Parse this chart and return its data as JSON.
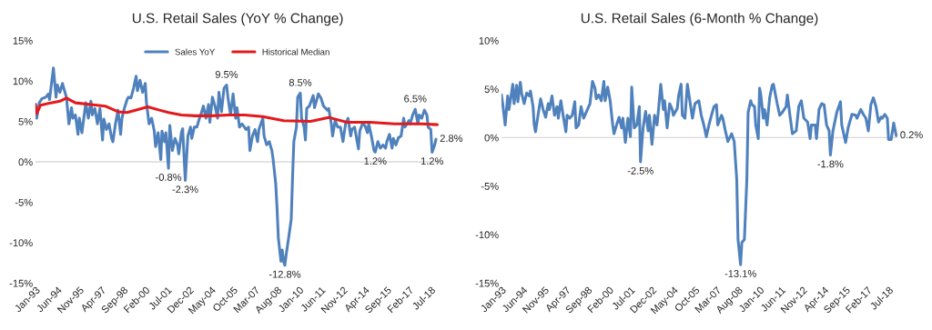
{
  "chart_data": [
    {
      "type": "line",
      "title": "U.S. Retail Sales (YoY % Change)",
      "legend": "top",
      "xlim": [
        "1993-01",
        "2019-02"
      ],
      "ylim": [
        -15,
        15
      ],
      "yticks": [
        {
          "value": -15,
          "label": "-15%"
        },
        {
          "value": -10,
          "label": "-10%"
        },
        {
          "value": -5,
          "label": "-5%"
        },
        {
          "value": 0,
          "label": "0%"
        },
        {
          "value": 5,
          "label": "5%"
        },
        {
          "value": 10,
          "label": "10%"
        },
        {
          "value": 15,
          "label": "15%"
        }
      ],
      "xticks": [
        {
          "value": "1993-01",
          "label": "Jan-93"
        },
        {
          "value": "1994-06",
          "label": "Jun-94"
        },
        {
          "value": "1995-11",
          "label": "Nov-95"
        },
        {
          "value": "1997-04",
          "label": "Apr-97"
        },
        {
          "value": "1998-09",
          "label": "Sep-98"
        },
        {
          "value": "2000-02",
          "label": "Feb-00"
        },
        {
          "value": "2001-07",
          "label": "Jul-01"
        },
        {
          "value": "2002-12",
          "label": "Dec-02"
        },
        {
          "value": "2004-05",
          "label": "May-04"
        },
        {
          "value": "2005-10",
          "label": "Oct-05"
        },
        {
          "value": "2007-03",
          "label": "Mar-07"
        },
        {
          "value": "2008-08",
          "label": "Aug-08"
        },
        {
          "value": "2010-01",
          "label": "Jan-10"
        },
        {
          "value": "2011-06",
          "label": "Jun-11"
        },
        {
          "value": "2012-11",
          "label": "Nov-12"
        },
        {
          "value": "2014-04",
          "label": "Apr-14"
        },
        {
          "value": "2015-09",
          "label": "Sep-15"
        },
        {
          "value": "2017-02",
          "label": "Feb-17"
        },
        {
          "value": "2018-07",
          "label": "Jul-18"
        }
      ],
      "ref_lines": [
        {
          "axis": "y",
          "value": 0,
          "color": "#d9d9d9"
        }
      ],
      "series": [
        {
          "name": "Sales YoY",
          "color": "#4f81bd",
          "x": [
            "1993-01",
            "1993-02",
            "1993-04",
            "1993-06",
            "1993-09",
            "1993-11",
            "1993-12",
            "1994-01",
            "1994-03",
            "1994-05",
            "1994-06",
            "1994-08",
            "1994-10",
            "1994-11",
            "1995-01",
            "1995-03",
            "1995-05",
            "1995-06",
            "1995-08",
            "1995-10",
            "1995-11",
            "1996-01",
            "1996-03",
            "1996-04",
            "1996-06",
            "1996-08",
            "1996-09",
            "1996-11",
            "1997-01",
            "1997-03",
            "1997-05",
            "1997-06",
            "1997-08",
            "1997-10",
            "1997-12",
            "1998-01",
            "1998-03",
            "1998-05",
            "1998-07",
            "1998-08",
            "1998-10",
            "1998-12",
            "1999-01",
            "1999-03",
            "1999-05",
            "1999-07",
            "1999-08",
            "1999-10",
            "1999-12",
            "2000-02",
            "2000-03",
            "2000-05",
            "2000-07",
            "2000-09",
            "2000-10",
            "2000-12",
            "2001-02",
            "2001-03",
            "2001-05",
            "2001-06",
            "2001-08",
            "2001-09",
            "2001-11",
            "2002-01",
            "2002-03",
            "2002-04",
            "2002-06",
            "2002-07",
            "2002-09",
            "2002-11",
            "2003-01",
            "2003-02",
            "2003-04",
            "2003-06",
            "2003-08",
            "2003-09",
            "2003-11",
            "2004-01",
            "2004-03",
            "2004-04",
            "2004-06",
            "2004-08",
            "2004-10",
            "2004-11",
            "2005-01",
            "2005-03",
            "2005-05",
            "2005-06",
            "2005-08",
            "2005-10",
            "2005-12",
            "2006-01",
            "2006-03",
            "2006-05",
            "2006-08",
            "2006-10",
            "2006-11",
            "2007-01",
            "2007-03",
            "2007-05",
            "2007-06",
            "2007-09",
            "2007-10",
            "2007-12",
            "2008-02",
            "2008-04",
            "2008-05",
            "2008-07",
            "2008-08",
            "2008-09",
            "2008-11",
            "2008-12",
            "2009-01",
            "2009-02",
            "2009-03",
            "2009-05",
            "2009-07",
            "2009-08",
            "2009-09",
            "2009-11",
            "2009-12",
            "2010-02",
            "2010-03",
            "2010-05",
            "2010-06",
            "2010-07",
            "2010-09",
            "2010-12",
            "2011-01",
            "2011-04",
            "2011-06",
            "2011-08",
            "2011-11",
            "2011-12",
            "2012-02",
            "2012-03",
            "2012-05",
            "2012-07",
            "2012-09",
            "2012-11",
            "2013-01",
            "2013-03",
            "2013-05",
            "2013-06",
            "2013-08",
            "2013-11",
            "2013-12",
            "2014-02",
            "2014-04",
            "2014-06",
            "2014-07",
            "2014-09",
            "2014-11",
            "2014-12",
            "2015-02",
            "2015-04",
            "2015-06",
            "2015-08",
            "2015-09",
            "2015-11",
            "2016-01",
            "2016-02",
            "2016-04",
            "2016-06",
            "2016-08",
            "2016-10",
            "2016-11",
            "2017-02",
            "2017-03",
            "2017-05",
            "2017-07",
            "2017-09",
            "2017-10",
            "2017-12",
            "2018-02",
            "2018-04",
            "2018-05",
            "2018-07",
            "2018-08",
            "2018-10",
            "2018-11"
          ],
          "values": [
            7.1,
            5.4,
            7.3,
            7.8,
            8.0,
            8.4,
            7.7,
            9.1,
            11.6,
            8.0,
            9.5,
            8.6,
            9.7,
            9.1,
            8.0,
            4.7,
            6.7,
            5.4,
            5.8,
            3.4,
            5.4,
            3.6,
            6.0,
            7.3,
            5.4,
            7.5,
            5.8,
            6.6,
            4.7,
            6.6,
            2.7,
            5.3,
            4.0,
            4.7,
            2.9,
            2.5,
            4.7,
            6.4,
            3.4,
            5.4,
            6.7,
            7.7,
            8.0,
            7.9,
            9.1,
            10.6,
            8.8,
            10.1,
            8.6,
            9.7,
            7.3,
            4.7,
            5.4,
            3.8,
            1.9,
            3.6,
            0.3,
            3.8,
            2.5,
            3.6,
            -0.8,
            4.5,
            1.4,
            2.9,
            2.1,
            1.0,
            3.6,
            4.1,
            -2.3,
            3.2,
            4.3,
            2.9,
            4.3,
            4.3,
            5.4,
            5.8,
            6.9,
            5.4,
            7.1,
            4.9,
            8.0,
            6.9,
            5.4,
            8.6,
            6.2,
            9.1,
            9.5,
            8.0,
            5.8,
            8.4,
            5.4,
            6.7,
            4.3,
            4.7,
            4.0,
            4.3,
            1.4,
            3.2,
            4.0,
            2.5,
            4.0,
            5.4,
            3.2,
            2.1,
            2.5,
            1.4,
            0.3,
            -2.7,
            -5.7,
            -9.4,
            -12.3,
            -10.9,
            -12.3,
            -12.8,
            -11.6,
            -9.4,
            -7.1,
            -2.0,
            2.5,
            4.3,
            8.0,
            8.5,
            5.4,
            4.3,
            2.7,
            6.6,
            6.9,
            8.2,
            6.7,
            8.4,
            7.9,
            6.9,
            6.4,
            6.6,
            4.7,
            3.2,
            5.1,
            4.3,
            4.3,
            2.5,
            4.7,
            5.4,
            3.2,
            4.0,
            4.3,
            1.6,
            3.8,
            4.7,
            4.5,
            3.6,
            4.7,
            3.2,
            1.4,
            1.2,
            2.5,
            1.7,
            2.1,
            1.7,
            2.5,
            3.4,
            1.7,
            2.9,
            2.1,
            3.0,
            3.2,
            5.4,
            4.3,
            5.1,
            4.7,
            5.8,
            6.5,
            4.7,
            5.8,
            5.4,
            6.4,
            5.8,
            4.3,
            4.0,
            1.2,
            2.1,
            2.8
          ]
        },
        {
          "name": "Historical Median",
          "color": "#e31a1c",
          "x": [
            "1993-01",
            "1993-02",
            "1993-05",
            "1994-01",
            "1994-08",
            "1995-01",
            "1995-08",
            "1996-08",
            "1997-07",
            "1998-05",
            "1998-12",
            "1999-09",
            "2000-04",
            "2001-01",
            "2001-08",
            "2002-06",
            "2003-05",
            "2004-05",
            "2005-07",
            "2006-07",
            "2007-09",
            "2009-01",
            "2010-10",
            "2011-12",
            "2013-02",
            "2014-08",
            "2016-03",
            "2017-12",
            "2018-12"
          ],
          "values": [
            7.1,
            6.0,
            7.0,
            7.3,
            7.5,
            7.9,
            7.3,
            7.1,
            6.9,
            6.2,
            6.1,
            6.5,
            6.8,
            6.4,
            6.1,
            5.8,
            5.7,
            5.7,
            5.8,
            5.8,
            5.6,
            5.1,
            5.0,
            5.5,
            4.9,
            4.9,
            4.7,
            4.7,
            4.6
          ]
        }
      ],
      "annotations": [
        {
          "text": "9.5%",
          "x": "2005-05",
          "y": 9.5
        },
        {
          "text": "-0.8%",
          "x": "2001-08",
          "y": -0.8
        },
        {
          "text": "-2.3%",
          "x": "2002-09",
          "y": -2.3
        },
        {
          "text": "-12.8%",
          "x": "2009-02",
          "y": -12.8
        },
        {
          "text": "8.5%",
          "x": "2010-02",
          "y": 8.5
        },
        {
          "text": "6.5%",
          "x": "2017-07",
          "y": 6.5
        },
        {
          "text": "1.2%",
          "x": "2014-12",
          "y": 1.2
        },
        {
          "text": "1.2%",
          "x": "2018-08",
          "y": 1.2
        },
        {
          "text": "2.8%",
          "x": "2018-11",
          "y": 2.8
        }
      ]
    },
    {
      "type": "line",
      "title": "U.S. Retail Sales (6-Month % Change)",
      "xlim": [
        "1993-01",
        "2019-02"
      ],
      "ylim": [
        -15,
        10
      ],
      "yticks": [
        {
          "value": -15,
          "label": "-15%"
        },
        {
          "value": -10,
          "label": "-10%"
        },
        {
          "value": -5,
          "label": "-5%"
        },
        {
          "value": 0,
          "label": "0%"
        },
        {
          "value": 5,
          "label": "5%"
        },
        {
          "value": 10,
          "label": "10%"
        }
      ],
      "xticks": [
        {
          "value": "1993-01",
          "label": "Jan-93"
        },
        {
          "value": "1994-06",
          "label": "Jun-94"
        },
        {
          "value": "1995-11",
          "label": "Nov-95"
        },
        {
          "value": "1997-04",
          "label": "Apr-97"
        },
        {
          "value": "1998-09",
          "label": "Sep-98"
        },
        {
          "value": "2000-02",
          "label": "Feb-00"
        },
        {
          "value": "2001-07",
          "label": "Jul-01"
        },
        {
          "value": "2002-12",
          "label": "Dec-02"
        },
        {
          "value": "2004-05",
          "label": "May-04"
        },
        {
          "value": "2005-10",
          "label": "Oct-05"
        },
        {
          "value": "2007-03",
          "label": "Mar-07"
        },
        {
          "value": "2008-08",
          "label": "Aug-08"
        },
        {
          "value": "2010-01",
          "label": "Jan-10"
        },
        {
          "value": "2011-06",
          "label": "Jun-11"
        },
        {
          "value": "2012-11",
          "label": "Nov-12"
        },
        {
          "value": "2014-04",
          "label": "Apr-14"
        },
        {
          "value": "2015-09",
          "label": "Sep-15"
        },
        {
          "value": "2017-02",
          "label": "Feb-17"
        },
        {
          "value": "2018-07",
          "label": "Jul-18"
        }
      ],
      "ref_lines": [
        {
          "axis": "y",
          "value": 0,
          "color": "#d9d9d9"
        }
      ],
      "series": [
        {
          "color": "#4f81bd",
          "x": [
            "1993-01",
            "1993-02",
            "1993-04",
            "1993-06",
            "1993-07",
            "1993-09",
            "1993-10",
            "1993-11",
            "1994-01",
            "1994-02",
            "1994-04",
            "1994-05",
            "1994-07",
            "1994-09",
            "1994-11",
            "1994-12",
            "1995-02",
            "1995-03",
            "1995-04",
            "1995-06",
            "1995-08",
            "1995-10",
            "1995-12",
            "1996-02",
            "1996-03",
            "1996-05",
            "1996-07",
            "1996-09",
            "1996-10",
            "1996-12",
            "1997-02",
            "1997-04",
            "1997-05",
            "1997-07",
            "1997-09",
            "1997-11",
            "1997-12",
            "1998-02",
            "1998-04",
            "1998-06",
            "1998-09",
            "1998-11",
            "1999-01",
            "1999-03",
            "1999-04",
            "1999-06",
            "1999-08",
            "1999-10",
            "1999-11",
            "2000-01",
            "2000-03",
            "2000-05",
            "2000-06",
            "2000-08",
            "2000-10",
            "2000-12",
            "2001-01",
            "2001-03",
            "2001-05",
            "2001-07",
            "2001-08",
            "2001-10",
            "2001-12",
            "2002-02",
            "2002-03",
            "2002-05",
            "2002-07",
            "2002-09",
            "2002-10",
            "2002-12",
            "2003-02",
            "2003-04",
            "2003-05",
            "2003-07",
            "2003-09",
            "2003-10",
            "2003-12",
            "2004-02",
            "2004-04",
            "2004-05",
            "2004-08",
            "2004-09",
            "2004-11",
            "2004-12",
            "2005-02",
            "2005-04",
            "2005-08",
            "2005-10",
            "2006-01",
            "2006-03",
            "2006-05",
            "2006-07",
            "2006-09",
            "2006-11",
            "2007-01",
            "2007-03",
            "2007-04",
            "2007-07",
            "2007-08",
            "2007-10",
            "2007-12",
            "2008-03",
            "2008-05",
            "2008-07",
            "2008-08",
            "2008-10",
            "2008-11",
            "2009-01",
            "2009-03",
            "2009-04",
            "2009-06",
            "2009-07",
            "2009-09",
            "2009-10",
            "2009-12",
            "2010-01",
            "2010-02",
            "2010-04",
            "2010-05",
            "2010-07",
            "2010-09",
            "2010-11",
            "2010-12",
            "2011-03",
            "2011-05",
            "2011-07",
            "2011-10",
            "2011-11",
            "2012-01",
            "2012-03",
            "2012-06",
            "2012-08",
            "2012-10",
            "2012-12",
            "2013-03",
            "2013-05",
            "2013-06",
            "2013-09",
            "2013-10",
            "2013-12",
            "2014-02",
            "2014-04",
            "2014-06",
            "2014-08",
            "2014-09",
            "2014-11",
            "2015-02",
            "2015-05",
            "2015-06",
            "2015-09",
            "2015-11",
            "2016-02",
            "2016-05",
            "2016-06",
            "2016-09",
            "2016-11",
            "2017-01",
            "2017-03",
            "2017-05",
            "2017-07",
            "2017-09",
            "2017-11",
            "2018-01",
            "2018-02",
            "2018-04",
            "2018-06",
            "2018-07",
            "2018-09",
            "2018-11",
            "2019-01"
          ],
          "values": [
            4.4,
            3.5,
            1.3,
            4.3,
            2.9,
            4.6,
            5.5,
            3.5,
            5.4,
            3.7,
            5.7,
            4.6,
            3.5,
            4.6,
            4.3,
            4.8,
            3.2,
            1.3,
            0.6,
            2.3,
            4.0,
            2.9,
            2.1,
            3.5,
            2.9,
            4.3,
            2.3,
            3.2,
            2.0,
            3.8,
            2.1,
            0.6,
            2.3,
            2.0,
            2.3,
            3.7,
            1.0,
            1.3,
            3.2,
            2.0,
            2.9,
            3.5,
            5.8,
            5.1,
            4.0,
            4.4,
            3.8,
            5.8,
            3.8,
            5.2,
            3.8,
            1.3,
            0.4,
            1.3,
            2.1,
            1.0,
            2.0,
            -0.5,
            2.0,
            0.1,
            5.2,
            1.0,
            1.3,
            3.2,
            -2.5,
            1.0,
            2.7,
            0.7,
            2.3,
            -0.7,
            2.3,
            1.3,
            2.6,
            5.5,
            2.9,
            3.8,
            1.0,
            3.5,
            2.9,
            2.3,
            3.0,
            4.3,
            5.5,
            2.3,
            2.0,
            5.5,
            2.0,
            3.5,
            3.8,
            2.3,
            1.3,
            0.1,
            1.3,
            2.3,
            3.2,
            3.4,
            1.3,
            2.3,
            2.0,
            0.7,
            -0.4,
            0.4,
            -0.4,
            -4.3,
            -10.5,
            -13.1,
            -10.8,
            -10.5,
            -4.3,
            2.6,
            3.8,
            3.4,
            3.2,
            1.3,
            -0.1,
            5.1,
            4.4,
            2.0,
            2.9,
            1.3,
            4.1,
            5.4,
            5.5,
            3.5,
            2.3,
            2.6,
            3.2,
            4.4,
            2.3,
            0.4,
            0.7,
            3.2,
            3.8,
            2.0,
            1.6,
            -0.1,
            1.3,
            1.3,
            -0.1,
            2.9,
            3.5,
            3.4,
            1.3,
            0.7,
            -1.8,
            0.7,
            2.6,
            3.7,
            1.3,
            -0.5,
            1.0,
            2.4,
            2.3,
            2.0,
            2.9,
            2.4,
            2.0,
            0.7,
            3.4,
            4.1,
            3.2,
            1.6,
            2.1,
            2.0,
            2.4,
            2.0,
            -0.2,
            -0.2,
            1.5,
            0.2
          ]
        }
      ],
      "annotations": [
        {
          "text": "-2.5%",
          "x": "2002-03",
          "y": -2.5
        },
        {
          "text": "-13.1%",
          "x": "2008-10",
          "y": -13.1
        },
        {
          "text": "-1.8%",
          "x": "2014-09",
          "y": -1.8
        },
        {
          "text": "0.2%",
          "x": "2019-01",
          "y": 0.2
        }
      ]
    }
  ]
}
